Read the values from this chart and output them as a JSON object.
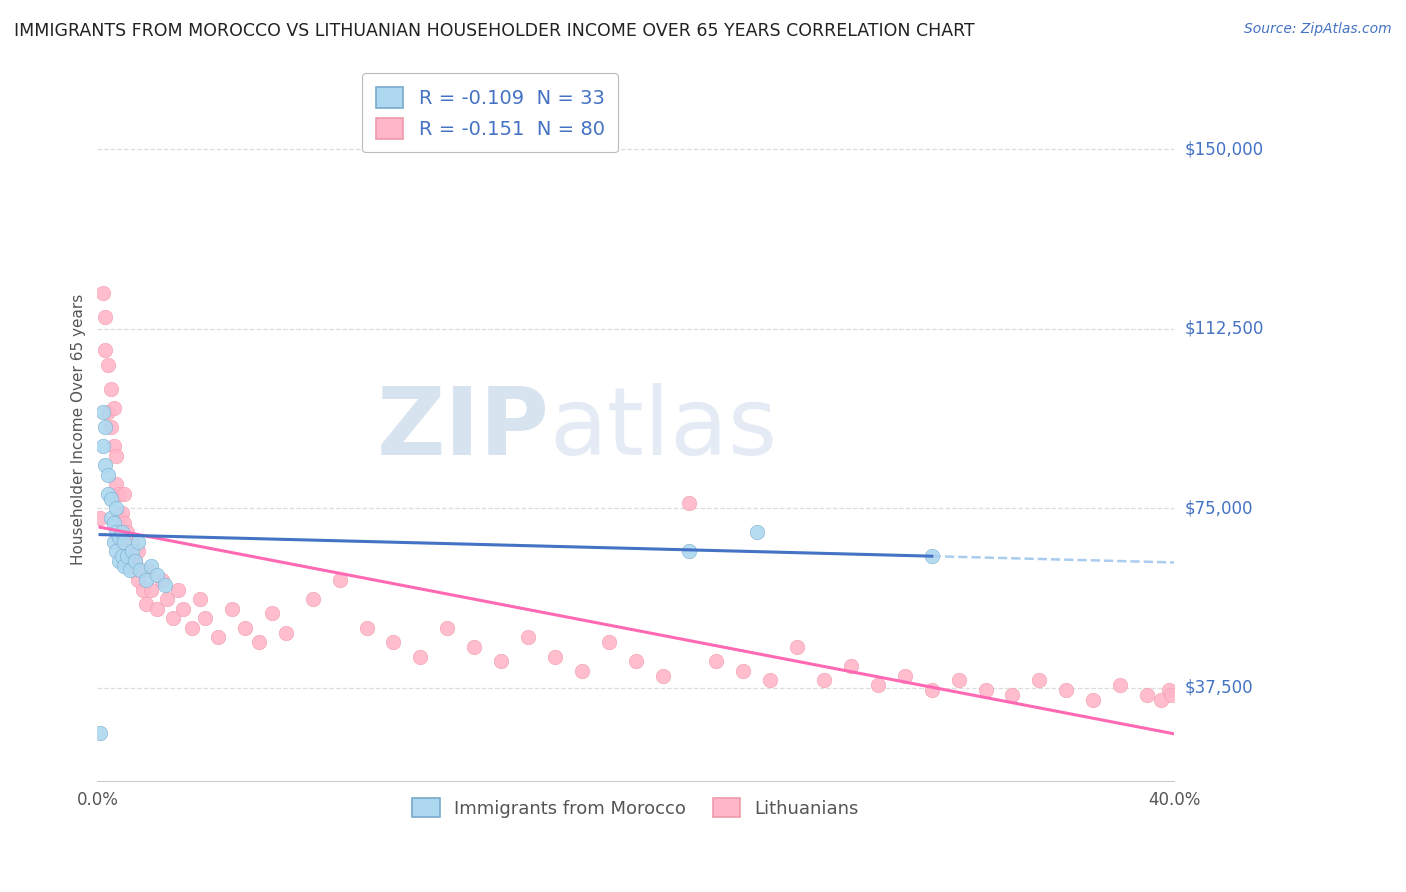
{
  "title": "IMMIGRANTS FROM MOROCCO VS LITHUANIAN HOUSEHOLDER INCOME OVER 65 YEARS CORRELATION CHART",
  "source": "Source: ZipAtlas.com",
  "ylabel": "Householder Income Over 65 years",
  "xlim": [
    0.0,
    0.4
  ],
  "ylim": [
    18000,
    165000
  ],
  "yticks": [
    37500,
    75000,
    112500,
    150000
  ],
  "ytick_labels": [
    "$37,500",
    "$75,000",
    "$112,500",
    "$150,000"
  ],
  "xtick_labels": [
    "0.0%",
    "40.0%"
  ],
  "legend1_label": "R = -0.109  N = 33",
  "legend2_label": "R = -0.151  N = 80",
  "legend_bottom1": "Immigrants from Morocco",
  "legend_bottom2": "Lithuanians",
  "color_blue": "#ADD8F0",
  "color_pink": "#FFB6C8",
  "line_blue": "#4472C4",
  "line_pink": "#FF69B4",
  "line_blue_dash": "#AACCEE",
  "watermark_line1": "ZIP",
  "watermark_line2": "atlas",
  "blue_points_x": [
    0.001,
    0.002,
    0.002,
    0.003,
    0.003,
    0.004,
    0.004,
    0.005,
    0.005,
    0.006,
    0.006,
    0.007,
    0.007,
    0.007,
    0.008,
    0.008,
    0.009,
    0.009,
    0.01,
    0.01,
    0.011,
    0.012,
    0.013,
    0.014,
    0.015,
    0.016,
    0.018,
    0.02,
    0.022,
    0.025,
    0.22,
    0.245,
    0.31
  ],
  "blue_points_y": [
    28000,
    95000,
    88000,
    84000,
    92000,
    78000,
    82000,
    73000,
    77000,
    68000,
    72000,
    66000,
    70000,
    75000,
    64000,
    69000,
    65000,
    70000,
    63000,
    68000,
    65000,
    62000,
    66000,
    64000,
    68000,
    62000,
    60000,
    63000,
    61000,
    59000,
    66000,
    70000,
    65000
  ],
  "pink_points_x": [
    0.001,
    0.002,
    0.003,
    0.003,
    0.004,
    0.004,
    0.005,
    0.005,
    0.006,
    0.006,
    0.007,
    0.007,
    0.008,
    0.008,
    0.009,
    0.009,
    0.01,
    0.01,
    0.011,
    0.011,
    0.012,
    0.013,
    0.014,
    0.015,
    0.015,
    0.016,
    0.017,
    0.018,
    0.019,
    0.02,
    0.022,
    0.024,
    0.026,
    0.028,
    0.03,
    0.032,
    0.035,
    0.038,
    0.04,
    0.045,
    0.05,
    0.055,
    0.06,
    0.065,
    0.07,
    0.08,
    0.09,
    0.1,
    0.11,
    0.12,
    0.13,
    0.14,
    0.15,
    0.16,
    0.17,
    0.18,
    0.19,
    0.2,
    0.21,
    0.22,
    0.23,
    0.24,
    0.25,
    0.26,
    0.27,
    0.28,
    0.29,
    0.3,
    0.31,
    0.32,
    0.33,
    0.34,
    0.35,
    0.36,
    0.37,
    0.38,
    0.39,
    0.395,
    0.398,
    0.399
  ],
  "pink_points_y": [
    73000,
    120000,
    115000,
    108000,
    95000,
    105000,
    100000,
    92000,
    88000,
    96000,
    80000,
    86000,
    73000,
    78000,
    68000,
    74000,
    72000,
    78000,
    65000,
    70000,
    63000,
    68000,
    64000,
    60000,
    66000,
    62000,
    58000,
    55000,
    62000,
    58000,
    54000,
    60000,
    56000,
    52000,
    58000,
    54000,
    50000,
    56000,
    52000,
    48000,
    54000,
    50000,
    47000,
    53000,
    49000,
    56000,
    60000,
    50000,
    47000,
    44000,
    50000,
    46000,
    43000,
    48000,
    44000,
    41000,
    47000,
    43000,
    40000,
    76000,
    43000,
    41000,
    39000,
    46000,
    39000,
    42000,
    38000,
    40000,
    37000,
    39000,
    37000,
    36000,
    39000,
    37000,
    35000,
    38000,
    36000,
    35000,
    37000,
    36000
  ]
}
